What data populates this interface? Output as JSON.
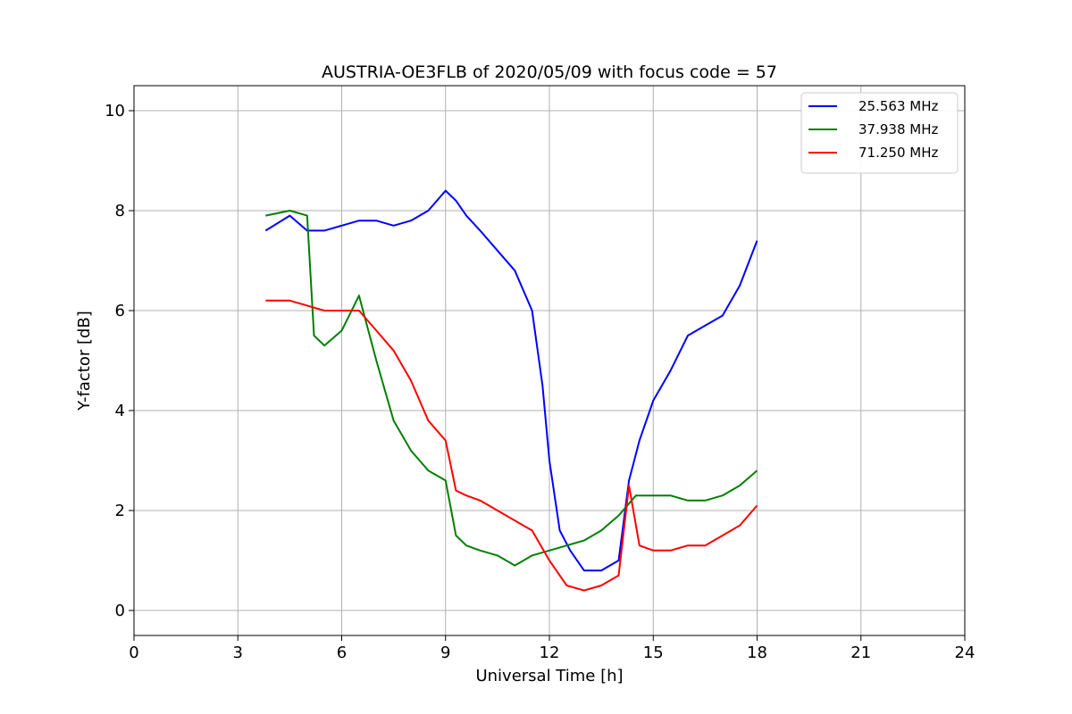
{
  "chart_data": {
    "type": "line",
    "title": "AUSTRIA-OE3FLB of 2020/05/09 with focus code = 57",
    "xlabel": "Universal Time [h]",
    "ylabel": "Y-factor [dB]",
    "xlim": [
      0,
      24
    ],
    "ylim": [
      -0.5,
      10.5
    ],
    "x_ticks": [
      0,
      3,
      6,
      9,
      12,
      15,
      18,
      21,
      24
    ],
    "x_tick_labels": [
      "0",
      "3",
      "6",
      "9",
      "12",
      "15",
      "18",
      "21",
      "24"
    ],
    "y_ticks": [
      0,
      2,
      4,
      6,
      8,
      10
    ],
    "y_tick_labels": [
      "0",
      "2",
      "4",
      "6",
      "8",
      "10"
    ],
    "grid": true,
    "legend_position": "top-right",
    "series": [
      {
        "name": "25.563 MHz",
        "color": "#0000ff",
        "x": [
          3.8,
          4.5,
          5.0,
          5.5,
          6.0,
          6.5,
          7.0,
          7.5,
          8.0,
          8.5,
          9.0,
          9.3,
          9.6,
          10.0,
          10.5,
          11.0,
          11.5,
          11.8,
          12.0,
          12.3,
          12.6,
          13.0,
          13.5,
          14.0,
          14.3,
          14.6,
          15.0,
          15.5,
          16.0,
          16.5,
          17.0,
          17.5,
          18.0
        ],
        "y": [
          7.6,
          7.9,
          7.6,
          7.6,
          7.7,
          7.8,
          7.8,
          7.7,
          7.8,
          8.0,
          8.4,
          8.2,
          7.9,
          7.6,
          7.2,
          6.8,
          6.0,
          4.5,
          3.0,
          1.6,
          1.2,
          0.8,
          0.8,
          1.0,
          2.6,
          3.4,
          4.2,
          4.8,
          5.5,
          5.7,
          5.9,
          6.5,
          7.4
        ]
      },
      {
        "name": "37.938 MHz",
        "color": "#008000",
        "x": [
          3.8,
          4.5,
          5.0,
          5.2,
          5.5,
          6.0,
          6.5,
          7.0,
          7.5,
          8.0,
          8.5,
          9.0,
          9.3,
          9.6,
          10.0,
          10.5,
          11.0,
          11.5,
          12.0,
          12.5,
          13.0,
          13.5,
          14.0,
          14.5,
          15.0,
          15.5,
          16.0,
          16.5,
          17.0,
          17.5,
          18.0
        ],
        "y": [
          7.9,
          8.0,
          7.9,
          5.5,
          5.3,
          5.6,
          6.3,
          5.0,
          3.8,
          3.2,
          2.8,
          2.6,
          1.5,
          1.3,
          1.2,
          1.1,
          0.9,
          1.1,
          1.2,
          1.3,
          1.4,
          1.6,
          1.9,
          2.3,
          2.3,
          2.3,
          2.2,
          2.2,
          2.3,
          2.5,
          2.8
        ]
      },
      {
        "name": "71.250 MHz",
        "color": "#ff0000",
        "x": [
          3.8,
          4.5,
          5.0,
          5.5,
          6.0,
          6.5,
          7.0,
          7.5,
          8.0,
          8.5,
          9.0,
          9.3,
          9.6,
          10.0,
          10.5,
          11.0,
          11.5,
          12.0,
          12.5,
          13.0,
          13.5,
          14.0,
          14.3,
          14.6,
          15.0,
          15.5,
          16.0,
          16.5,
          17.0,
          17.5,
          18.0
        ],
        "y": [
          6.2,
          6.2,
          6.1,
          6.0,
          6.0,
          6.0,
          5.6,
          5.2,
          4.6,
          3.8,
          3.4,
          2.4,
          2.3,
          2.2,
          2.0,
          1.8,
          1.6,
          1.0,
          0.5,
          0.4,
          0.5,
          0.7,
          2.5,
          1.3,
          1.2,
          1.2,
          1.3,
          1.3,
          1.5,
          1.7,
          2.1
        ]
      }
    ]
  }
}
